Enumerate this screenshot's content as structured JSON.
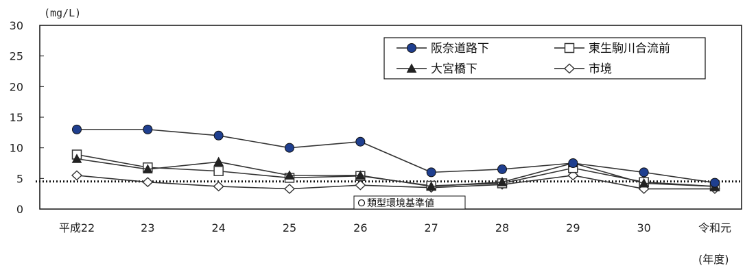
{
  "chart_data": {
    "type": "line",
    "categories": [
      "平成22",
      "23",
      "24",
      "25",
      "26",
      "27",
      "28",
      "29",
      "30",
      "令和元"
    ],
    "y_unit_label": "(mg/L)",
    "x_unit_label": "(年度)",
    "ylim": [
      0,
      30
    ],
    "yticks": [
      0,
      5,
      10,
      15,
      20,
      25,
      30
    ],
    "grid": false,
    "legend_position": "top-right",
    "series": [
      {
        "name": "阪奈道路下",
        "marker": "filled-circle",
        "color": "#1f3f8f",
        "values": [
          13,
          13,
          12,
          10,
          11,
          6,
          6.5,
          7.5,
          6,
          4.3
        ]
      },
      {
        "name": "東生駒川合流前",
        "marker": "open-square",
        "color": "#333333",
        "values": [
          8.9,
          6.8,
          6.2,
          5.1,
          5.4,
          3.8,
          4.2,
          6.7,
          4.4,
          3.7
        ]
      },
      {
        "name": "大宮橋下",
        "marker": "filled-triangle",
        "color": "#222222",
        "values": [
          8.2,
          6.5,
          7.7,
          5.5,
          5.5,
          3.7,
          4.4,
          7.5,
          4.2,
          3.7
        ]
      },
      {
        "name": "市境",
        "marker": "open-diamond",
        "color": "#333333",
        "values": [
          5.5,
          4.4,
          3.7,
          3.3,
          3.9,
          3.5,
          4.0,
          5.5,
          3.3,
          3.3
        ]
      }
    ],
    "reference_line": {
      "label": "類型環境基準値",
      "value": 4.5,
      "style": "dotted"
    }
  }
}
